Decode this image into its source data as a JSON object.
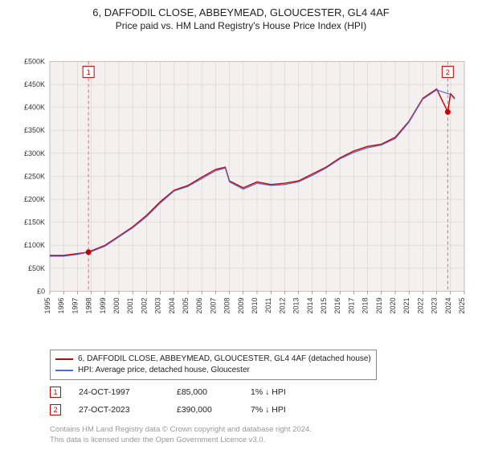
{
  "title": {
    "main": "6, DAFFODIL CLOSE, ABBEYMEAD, GLOUCESTER, GL4 4AF",
    "sub": "Price paid vs. HM Land Registry's House Price Index (HPI)",
    "fontsize_main": 13,
    "fontsize_sub": 12,
    "color": "#222222"
  },
  "chart": {
    "type": "line",
    "background_color": "#f4f0ef",
    "outer_background": "#ffffff",
    "grid_color": "#d7cfcc",
    "axis_color": "#666666",
    "tick_fontsize": 9,
    "tick_color": "#333333",
    "x": {
      "min": 1995,
      "max": 2025,
      "ticks": [
        1995,
        1996,
        1997,
        1998,
        1999,
        2000,
        2001,
        2002,
        2003,
        2004,
        2005,
        2006,
        2007,
        2008,
        2009,
        2010,
        2011,
        2012,
        2013,
        2014,
        2015,
        2016,
        2017,
        2018,
        2019,
        2020,
        2021,
        2022,
        2023,
        2024,
        2025
      ]
    },
    "y": {
      "min": 0,
      "max": 500000,
      "ticks": [
        0,
        50000,
        100000,
        150000,
        200000,
        250000,
        300000,
        350000,
        400000,
        450000,
        500000
      ],
      "tick_labels": [
        "£0",
        "£50K",
        "£100K",
        "£150K",
        "£200K",
        "£250K",
        "£300K",
        "£350K",
        "£400K",
        "£450K",
        "£500K"
      ]
    },
    "series": [
      {
        "name": "property",
        "label": "6, DAFFODIL CLOSE, ABBEYMEAD, GLOUCESTER, GL4 4AF (detached house)",
        "color": "#cc0000",
        "width": 1.4,
        "x": [
          1995,
          1996,
          1997,
          1997.8,
          1998,
          1999,
          2000,
          2001,
          2002,
          2003,
          2004,
          2005,
          2006,
          2007,
          2007.7,
          2008,
          2009,
          2010,
          2011,
          2012,
          2013,
          2014,
          2015,
          2016,
          2017,
          2018,
          2019,
          2020,
          2021,
          2022,
          2023,
          2023.8,
          2024,
          2024.3
        ],
        "y": [
          78000,
          78000,
          82000,
          85000,
          88000,
          100000,
          120000,
          140000,
          165000,
          195000,
          220000,
          230000,
          248000,
          265000,
          270000,
          240000,
          225000,
          238000,
          232000,
          235000,
          240000,
          255000,
          270000,
          290000,
          305000,
          315000,
          320000,
          335000,
          370000,
          420000,
          440000,
          390000,
          430000,
          420000
        ]
      },
      {
        "name": "hpi",
        "label": "HPI: Average price, detached house, Gloucester",
        "color": "#4a6fd0",
        "width": 1.2,
        "x": [
          1995,
          1996,
          1997,
          1998,
          1999,
          2000,
          2001,
          2002,
          2003,
          2004,
          2005,
          2006,
          2007,
          2007.7,
          2008,
          2009,
          2010,
          2011,
          2012,
          2013,
          2014,
          2015,
          2016,
          2017,
          2018,
          2019,
          2020,
          2021,
          2022,
          2023,
          2024,
          2024.3
        ],
        "y": [
          76000,
          76000,
          80000,
          86000,
          98000,
          118000,
          138000,
          162000,
          192000,
          218000,
          228000,
          245000,
          262000,
          268000,
          238000,
          222000,
          235000,
          230000,
          232000,
          238000,
          252000,
          268000,
          288000,
          302000,
          312000,
          318000,
          332000,
          368000,
          418000,
          438000,
          428000,
          418000
        ]
      }
    ],
    "markers": [
      {
        "id": "1",
        "date": "24-OCT-1997",
        "x": 1997.8,
        "y": 85000,
        "price_label": "£85,000",
        "pct_label": "1% ↓ HPI",
        "dot_color": "#cc0000",
        "line_color": "#cc7777",
        "dash": "4 3"
      },
      {
        "id": "2",
        "date": "27-OCT-2023",
        "x": 2023.8,
        "y": 390000,
        "price_label": "£390,000",
        "pct_label": "7% ↓ HPI",
        "dot_color": "#cc0000",
        "line_color": "#cc7777",
        "dash": "4 3"
      }
    ],
    "marker_badge": {
      "border_color": "#cc0000",
      "text_color": "#cc0000",
      "bg": "#ffffff",
      "size": 14,
      "fontsize": 9
    }
  },
  "legend": {
    "border_color": "#888888",
    "fontsize": 10,
    "items": [
      {
        "color": "#cc0000",
        "label": "6, DAFFODIL CLOSE, ABBEYMEAD, GLOUCESTER, GL4 4AF (detached house)"
      },
      {
        "color": "#4a6fd0",
        "label": "HPI: Average price, detached house, Gloucester"
      }
    ]
  },
  "footer": {
    "line1": "Contains HM Land Registry data © Crown copyright and database right 2024.",
    "line2": "This data is licensed under the Open Government Licence v3.0.",
    "color": "#999999",
    "fontsize": 9.5
  }
}
